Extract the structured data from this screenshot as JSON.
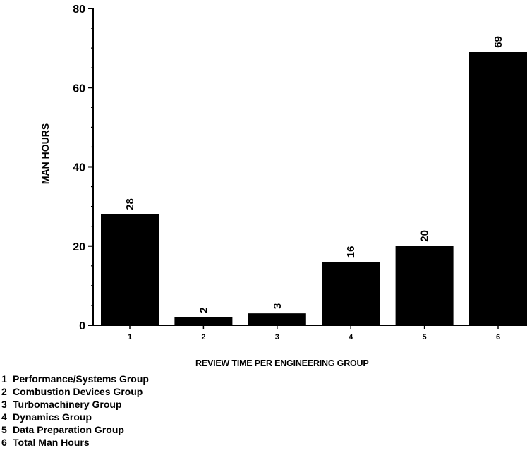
{
  "chart_data": {
    "type": "bar",
    "categories": [
      "1",
      "2",
      "3",
      "4",
      "5",
      "6"
    ],
    "values": [
      28,
      2,
      3,
      16,
      20,
      69
    ],
    "data_labels": [
      "28",
      "2",
      "3",
      "16",
      "20",
      "69"
    ],
    "ylabel": "MAN HOURS",
    "xlabel": "REVIEW TIME PER ENGINEERING GROUP",
    "ylim": [
      0,
      80
    ],
    "yticks": [
      0,
      20,
      40,
      60,
      80
    ],
    "ytick_labels": [
      "0",
      "20",
      "40",
      "60",
      "80"
    ],
    "grid": false,
    "bar_color": "#000000",
    "legend": [
      {
        "num": "1",
        "label": "Performance/Systems Group"
      },
      {
        "num": "2",
        "label": "Combustion Devices Group"
      },
      {
        "num": "3",
        "label": "Turbomachinery Group"
      },
      {
        "num": "4",
        "label": "Dynamics Group"
      },
      {
        "num": "5",
        "label": "Data Preparation Group"
      },
      {
        "num": "6",
        "label": "Total Man Hours"
      }
    ]
  }
}
